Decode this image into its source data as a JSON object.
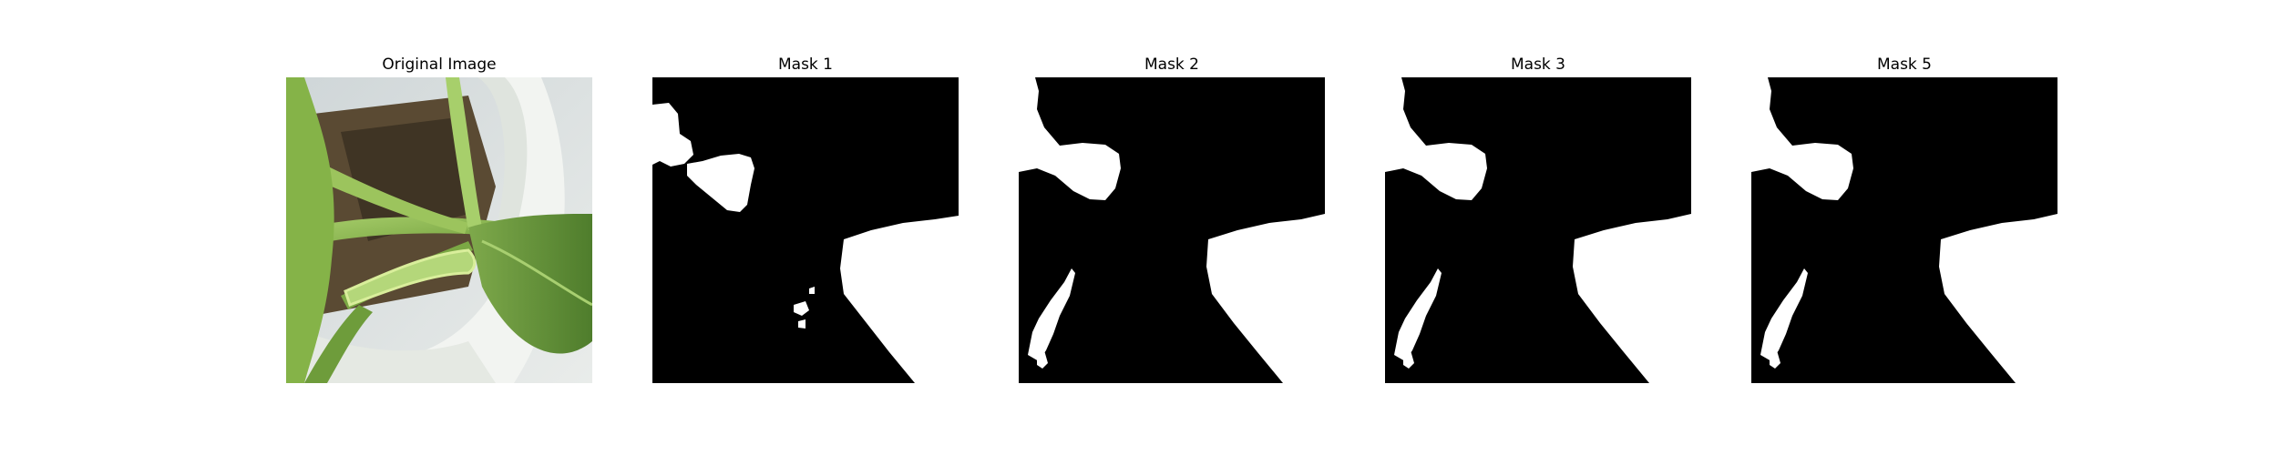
{
  "panels": [
    {
      "title": "Original Image",
      "kind": "photo"
    },
    {
      "title": "Mask 1",
      "kind": "mask"
    },
    {
      "title": "Mask 2",
      "kind": "mask"
    },
    {
      "title": "Mask 3",
      "kind": "mask"
    },
    {
      "title": "Mask 5",
      "kind": "mask"
    }
  ],
  "colors": {
    "background": "#ffffff",
    "mask_background": "#000000",
    "mask_foreground": "#ffffff",
    "leaf_green": "#8fbf4a",
    "pot_white": "#e8ece7"
  }
}
